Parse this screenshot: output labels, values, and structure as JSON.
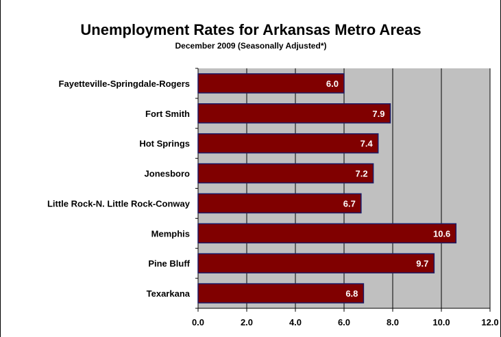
{
  "chart_data": {
    "type": "bar",
    "orientation": "horizontal",
    "title": "Unemployment Rates for Arkansas Metro Areas",
    "subtitle": "December 2009 (Seasonally Adjusted*)",
    "xlabel": "",
    "ylabel": "",
    "categories": [
      "Fayetteville-Springdale-Rogers",
      "Fort Smith",
      "Hot Springs",
      "Jonesboro",
      "Little Rock-N. Little Rock-Conway",
      "Memphis",
      "Pine Bluff",
      "Texarkana"
    ],
    "values": [
      6.0,
      7.9,
      7.4,
      7.2,
      6.7,
      10.6,
      9.7,
      6.8
    ],
    "data_labels": [
      "6.0",
      "7.9",
      "7.4",
      "7.2",
      "6.7",
      "10.6",
      "9.7",
      "6.8"
    ],
    "xlim": [
      0,
      12
    ],
    "ticks": [
      0,
      2,
      4,
      6,
      8,
      10,
      12
    ],
    "tick_labels": [
      "0.0",
      "2.0",
      "4.0",
      "6.0",
      "8.0",
      "10.0",
      "12.0"
    ],
    "grid": true,
    "legend": "none",
    "colors": {
      "bar_fill": "#800000",
      "bar_stroke": "#1a1a66",
      "plot_background": "#c0c0c0",
      "gridline": "#000000",
      "data_label": "#ffffff"
    }
  }
}
